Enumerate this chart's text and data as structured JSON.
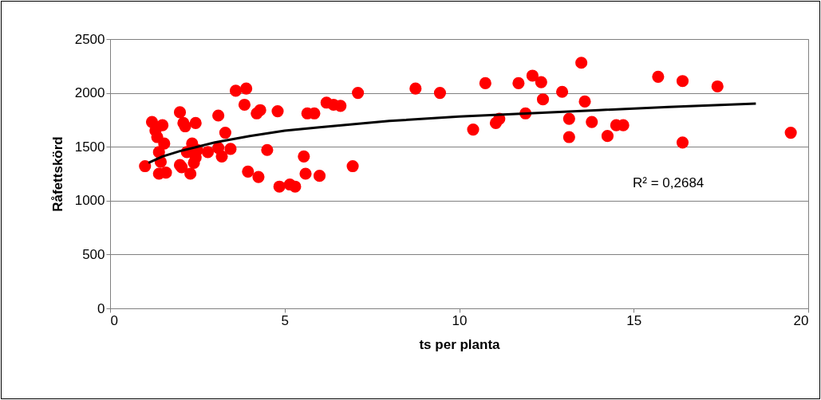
{
  "chart_data": {
    "type": "scatter",
    "xlabel": "ts per planta",
    "ylabel": "Råfettskörd",
    "xlim": [
      0,
      20
    ],
    "xticks": [
      0,
      5,
      10,
      15,
      20
    ],
    "ylim": [
      0,
      2500
    ],
    "yticks": [
      0,
      500,
      1000,
      1500,
      2000,
      2500
    ],
    "grid": "y",
    "annotations": [
      "R² = 0,2684"
    ],
    "series": [
      {
        "marker": "circle",
        "color": "#ff0000",
        "x": [
          1.0,
          1.2,
          1.3,
          1.35,
          1.4,
          1.4,
          1.45,
          1.5,
          1.55,
          1.6,
          2.0,
          2.0,
          2.05,
          2.1,
          2.15,
          2.2,
          2.3,
          2.35,
          2.4,
          2.45,
          2.45,
          2.5,
          2.8,
          3.1,
          3.1,
          3.2,
          3.3,
          3.45,
          3.6,
          3.85,
          3.9,
          3.95,
          4.2,
          4.25,
          4.3,
          4.5,
          4.8,
          4.85,
          5.15,
          5.3,
          5.55,
          5.6,
          5.65,
          5.85,
          6.0,
          6.2,
          6.4,
          6.6,
          6.95,
          7.1,
          8.75,
          9.45,
          10.4,
          10.75,
          11.05,
          11.15,
          11.7,
          11.9,
          12.1,
          12.35,
          12.4,
          12.95,
          13.15,
          13.15,
          13.5,
          13.6,
          13.8,
          14.25,
          14.5,
          14.7,
          15.7,
          16.4,
          16.4,
          17.4,
          19.5
        ],
        "values": [
          1320,
          1730,
          1650,
          1590,
          1450,
          1250,
          1360,
          1700,
          1530,
          1260,
          1820,
          1330,
          1310,
          1720,
          1690,
          1450,
          1250,
          1530,
          1350,
          1720,
          1400,
          1470,
          1450,
          1790,
          1490,
          1410,
          1630,
          1480,
          2020,
          1890,
          2040,
          1270,
          1810,
          1220,
          1840,
          1470,
          1830,
          1130,
          1150,
          1130,
          1410,
          1250,
          1810,
          1810,
          1230,
          1910,
          1890,
          1880,
          1320,
          2000,
          2040,
          2000,
          1660,
          2090,
          1720,
          1760,
          2090,
          1810,
          2160,
          2100,
          1940,
          2010,
          1760,
          1590,
          2280,
          1920,
          1730,
          1600,
          1700,
          1700,
          2150,
          2110,
          1540,
          2060,
          1630
        ]
      },
      {
        "type": "line",
        "color": "#000000",
        "line_style": "solid",
        "x": [
          1.1,
          1.5,
          2,
          2.5,
          3,
          4,
          5,
          6,
          7,
          8,
          10,
          12,
          14,
          16,
          18.5
        ],
        "values": [
          1350,
          1410,
          1460,
          1500,
          1540,
          1600,
          1650,
          1680,
          1710,
          1740,
          1780,
          1810,
          1840,
          1870,
          1900
        ]
      }
    ]
  }
}
